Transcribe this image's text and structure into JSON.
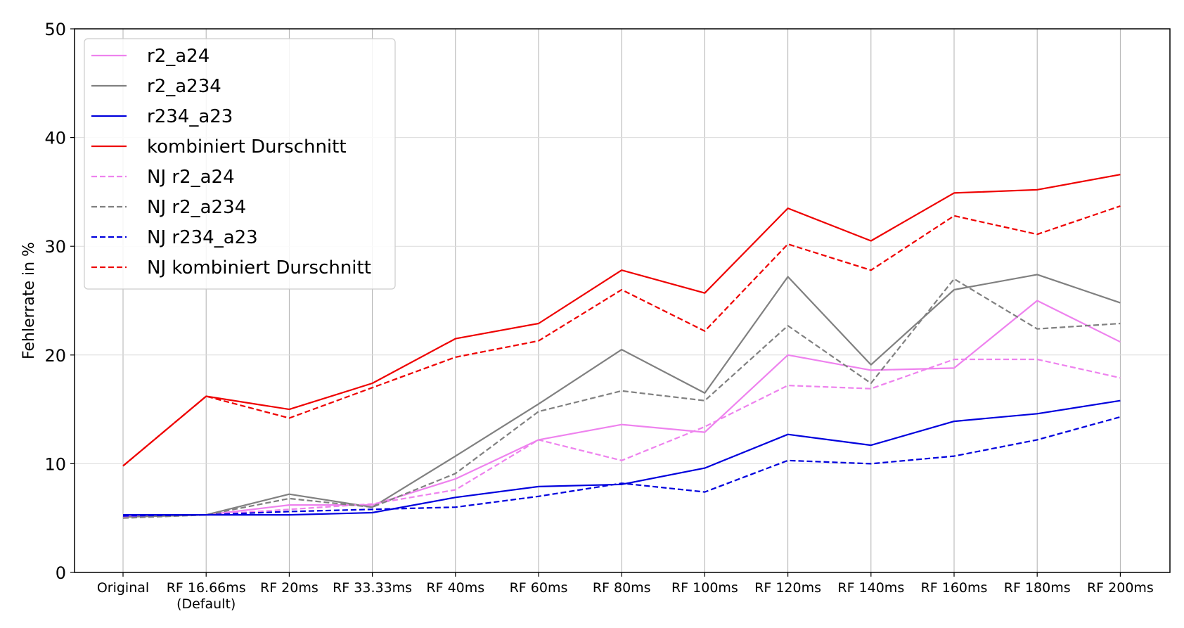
{
  "chart_data": {
    "type": "line",
    "xlabel": "",
    "ylabel": "Fehlerrate in %",
    "ylim": [
      0,
      50
    ],
    "yticks": [
      0,
      10,
      20,
      30,
      40,
      50
    ],
    "grid": true,
    "legend_position": "top-left",
    "categories": [
      [
        "Original"
      ],
      [
        "RF 16.66ms",
        "(Default)"
      ],
      [
        "RF 20ms"
      ],
      [
        "RF 33.33ms"
      ],
      [
        "RF 40ms"
      ],
      [
        "RF 60ms"
      ],
      [
        "RF 80ms"
      ],
      [
        "RF 100ms"
      ],
      [
        "RF 120ms"
      ],
      [
        "RF 140ms"
      ],
      [
        "RF 160ms"
      ],
      [
        "RF 180ms"
      ],
      [
        "RF 200ms"
      ]
    ],
    "series": [
      {
        "name": "r2_a24",
        "color": "#ee82ee",
        "dashed": false,
        "values": [
          5.2,
          5.3,
          6.2,
          6.2,
          8.6,
          12.2,
          13.6,
          12.9,
          20.0,
          18.6,
          18.8,
          25.0,
          21.2
        ]
      },
      {
        "name": "r2_a234",
        "color": "#808080",
        "dashed": false,
        "values": [
          5.1,
          5.3,
          7.2,
          6.0,
          10.7,
          15.5,
          20.5,
          16.5,
          27.2,
          19.1,
          26.0,
          27.4,
          24.8
        ]
      },
      {
        "name": "r234_a23",
        "color": "#0000dd",
        "dashed": false,
        "values": [
          5.3,
          5.3,
          5.3,
          5.5,
          6.9,
          7.9,
          8.1,
          9.6,
          12.7,
          11.7,
          13.9,
          14.6,
          15.8
        ]
      },
      {
        "name": "kombiniert Durschnitt",
        "color": "#ee0000",
        "dashed": false,
        "values": [
          9.8,
          16.2,
          15.0,
          17.4,
          21.5,
          22.9,
          27.8,
          25.7,
          33.5,
          30.5,
          34.9,
          35.2,
          36.6
        ]
      },
      {
        "name": "NJ r2_a24",
        "color": "#ee82ee",
        "dashed": true,
        "values": [
          5.1,
          5.3,
          5.8,
          6.3,
          7.6,
          12.2,
          10.3,
          13.4,
          17.2,
          16.9,
          19.6,
          19.6,
          17.9
        ]
      },
      {
        "name": "NJ r2_a234",
        "color": "#808080",
        "dashed": true,
        "values": [
          5.0,
          5.3,
          6.8,
          6.0,
          9.1,
          14.8,
          16.7,
          15.8,
          22.7,
          17.4,
          27.0,
          22.4,
          22.9
        ]
      },
      {
        "name": "NJ r234_a23",
        "color": "#0000dd",
        "dashed": true,
        "values": [
          5.2,
          5.3,
          5.6,
          5.8,
          6.0,
          7.0,
          8.2,
          7.4,
          10.3,
          10.0,
          10.7,
          12.2,
          14.3
        ]
      },
      {
        "name": "NJ kombiniert Durschnitt",
        "color": "#ee0000",
        "dashed": true,
        "values": [
          9.8,
          16.2,
          14.2,
          17.0,
          19.8,
          21.3,
          26.0,
          22.2,
          30.2,
          27.8,
          32.8,
          31.1,
          33.7
        ]
      }
    ]
  }
}
